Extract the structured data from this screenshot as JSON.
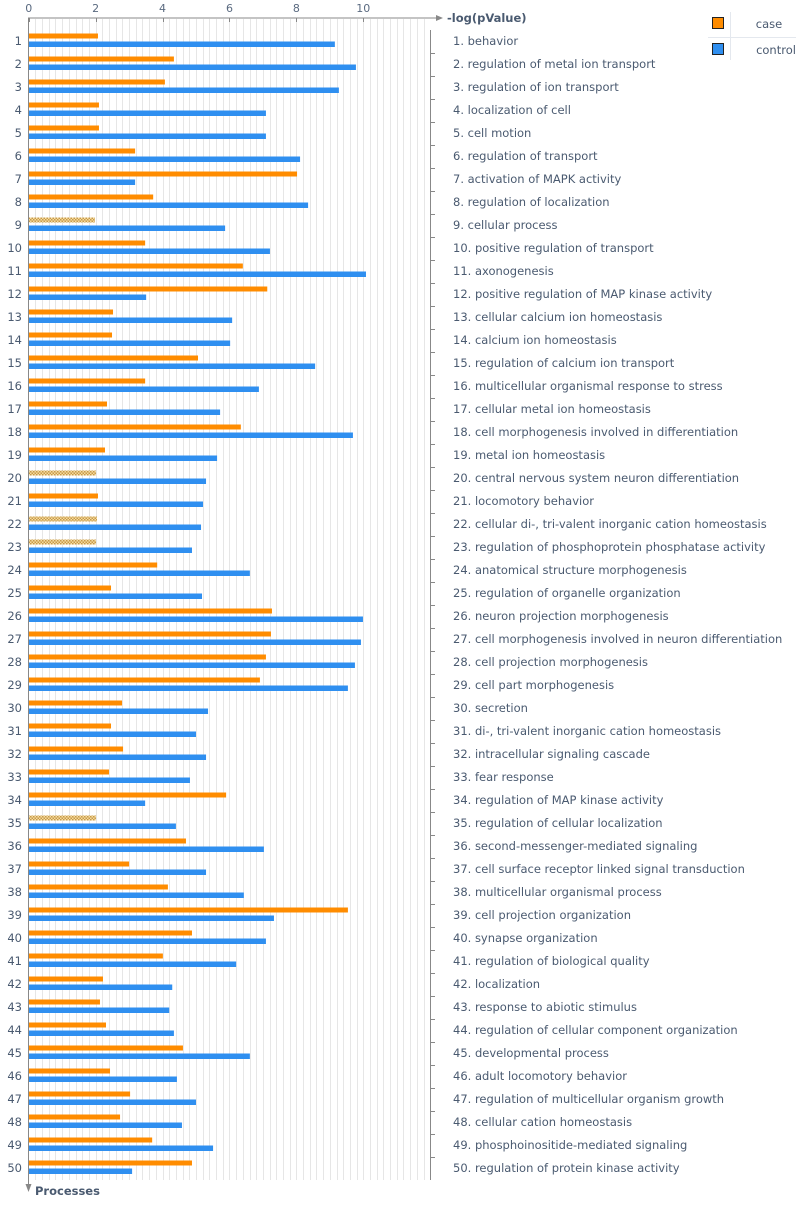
{
  "chart_data": {
    "type": "bar",
    "orientation": "horizontal",
    "xlabel": "-log(pValue)",
    "ylabel": "Processes",
    "xlim": [
      0,
      12
    ],
    "xticks": [
      0,
      2,
      4,
      6,
      8,
      10
    ],
    "grid": true,
    "legend_position": "top-right",
    "colors": {
      "case": "#ff8c00",
      "control": "#2f8ff0",
      "hatched": "#d8b060"
    },
    "categories": [
      "1. behavior",
      "2. regulation of metal ion transport",
      "3. regulation of ion transport",
      "4. localization of cell",
      "5. cell motion",
      "6. regulation of transport",
      "7. activation of MAPK activity",
      "8. regulation of localization",
      "9. cellular process",
      "10. positive regulation of transport",
      "11. axonogenesis",
      "12. positive regulation of MAP kinase activity",
      "13. cellular calcium ion homeostasis",
      "14. calcium ion homeostasis",
      "15. regulation of calcium ion transport",
      "16. multicellular organismal response to stress",
      "17. cellular metal ion homeostasis",
      "18. cell morphogenesis involved in differentiation",
      "19. metal ion homeostasis",
      "20. central nervous system neuron differentiation",
      "21. locomotory behavior",
      "22. cellular di-, tri-valent inorganic cation homeostasis",
      "23. regulation of phosphoprotein phosphatase activity",
      "24. anatomical structure morphogenesis",
      "25. regulation of organelle organization",
      "26. neuron projection morphogenesis",
      "27. cell morphogenesis involved in neuron differentiation",
      "28. cell projection morphogenesis",
      "29. cell part morphogenesis",
      "30. secretion",
      "31. di-, tri-valent inorganic cation homeostasis",
      "32. intracellular signaling cascade",
      "33. fear response",
      "34. regulation of MAP kinase activity",
      "35. regulation of cellular localization",
      "36. second-messenger-mediated signaling",
      "37. cell surface receptor linked signal transduction",
      "38. multicellular organismal process",
      "39. cell projection organization",
      "40. synapse organization",
      "41. regulation of biological quality",
      "42. localization",
      "43. response to abiotic stimulus",
      "44. regulation of cellular component organization",
      "45. developmental process",
      "46. adult locomotory behavior",
      "47. regulation of multicellular organism growth",
      "48. cellular cation homeostasis",
      "49. phosphoinositide-mediated signaling",
      "50. regulation of protein kinase activity"
    ],
    "row_numbers": [
      "1",
      "2",
      "3",
      "4",
      "5",
      "6",
      "7",
      "8",
      "9",
      "10",
      "11",
      "12",
      "13",
      "14",
      "15",
      "16",
      "17",
      "18",
      "19",
      "20",
      "21",
      "22",
      "23",
      "24",
      "25",
      "26",
      "27",
      "28",
      "29",
      "30",
      "31",
      "32",
      "33",
      "34",
      "35",
      "36",
      "37",
      "38",
      "39",
      "40",
      "41",
      "42",
      "43",
      "44",
      "45",
      "46",
      "47",
      "48",
      "49",
      "50"
    ],
    "series": [
      {
        "name": "case",
        "values": [
          2.07,
          4.34,
          4.07,
          2.1,
          2.1,
          3.18,
          8.02,
          3.72,
          1.98,
          3.48,
          6.4,
          7.13,
          2.52,
          2.49,
          5.06,
          3.48,
          2.34,
          6.34,
          2.28,
          2.01,
          2.07,
          2.04,
          2.01,
          3.84,
          2.46,
          7.27,
          7.24,
          7.09,
          6.91,
          2.79,
          2.46,
          2.82,
          2.4,
          5.9,
          2.01,
          4.7,
          3.0,
          4.16,
          9.54,
          4.88,
          4.01,
          2.22,
          2.13,
          2.31,
          4.61,
          2.43,
          3.03,
          2.73,
          3.69,
          4.88
        ],
        "hatched_rows": [
          9,
          20,
          22,
          23,
          35
        ]
      },
      {
        "name": "control",
        "values": [
          9.15,
          9.78,
          9.27,
          7.09,
          7.09,
          8.11,
          3.18,
          8.35,
          5.87,
          7.21,
          10.08,
          3.51,
          6.08,
          6.02,
          8.56,
          6.88,
          5.72,
          9.69,
          5.63,
          5.3,
          5.21,
          5.15,
          4.88,
          6.61,
          5.18,
          9.99,
          9.93,
          9.75,
          9.54,
          5.36,
          5.0,
          5.3,
          4.82,
          3.48,
          4.4,
          7.03,
          5.3,
          6.43,
          7.33,
          7.09,
          6.2,
          4.29,
          4.2,
          4.34,
          6.61,
          4.43,
          5.0,
          4.58,
          5.51,
          3.09
        ]
      }
    ]
  }
}
